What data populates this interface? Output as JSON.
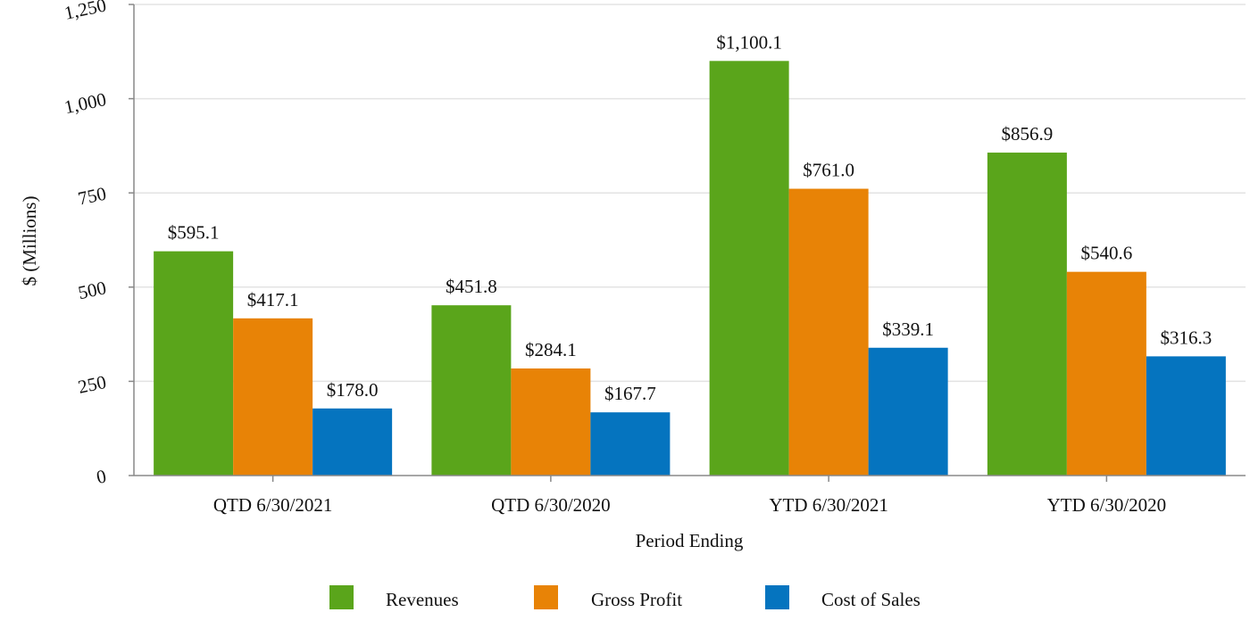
{
  "chart_data": {
    "type": "bar",
    "ylabel": "$ (Millions)",
    "xlabel": "Period Ending",
    "ylim": [
      0,
      1250
    ],
    "yticks": [
      0,
      250,
      500,
      750,
      1000,
      1250
    ],
    "ytick_labels": [
      "0",
      "250",
      "500",
      "750",
      "1,000",
      "1,250"
    ],
    "grid": true,
    "legend": "bottom",
    "categories": [
      "QTD 6/30/2021",
      "QTD 6/30/2020",
      "YTD 6/30/2021",
      "YTD 6/30/2020"
    ],
    "series": [
      {
        "name": "Revenues",
        "color": "#5aa51b",
        "values": [
          595.1,
          451.8,
          1100.1,
          856.9
        ],
        "labels": [
          "$595.1",
          "$451.8",
          "$1,100.1",
          "$856.9"
        ]
      },
      {
        "name": "Gross Profit",
        "color": "#e88306",
        "values": [
          417.1,
          284.1,
          761.0,
          540.6
        ],
        "labels": [
          "$417.1",
          "$284.1",
          "$761.0",
          "$540.6"
        ]
      },
      {
        "name": "Cost of Sales",
        "color": "#0574bf",
        "values": [
          178.0,
          167.7,
          339.1,
          316.3
        ],
        "labels": [
          "$178.0",
          "$167.7",
          "$339.1",
          "$316.3"
        ]
      }
    ]
  }
}
